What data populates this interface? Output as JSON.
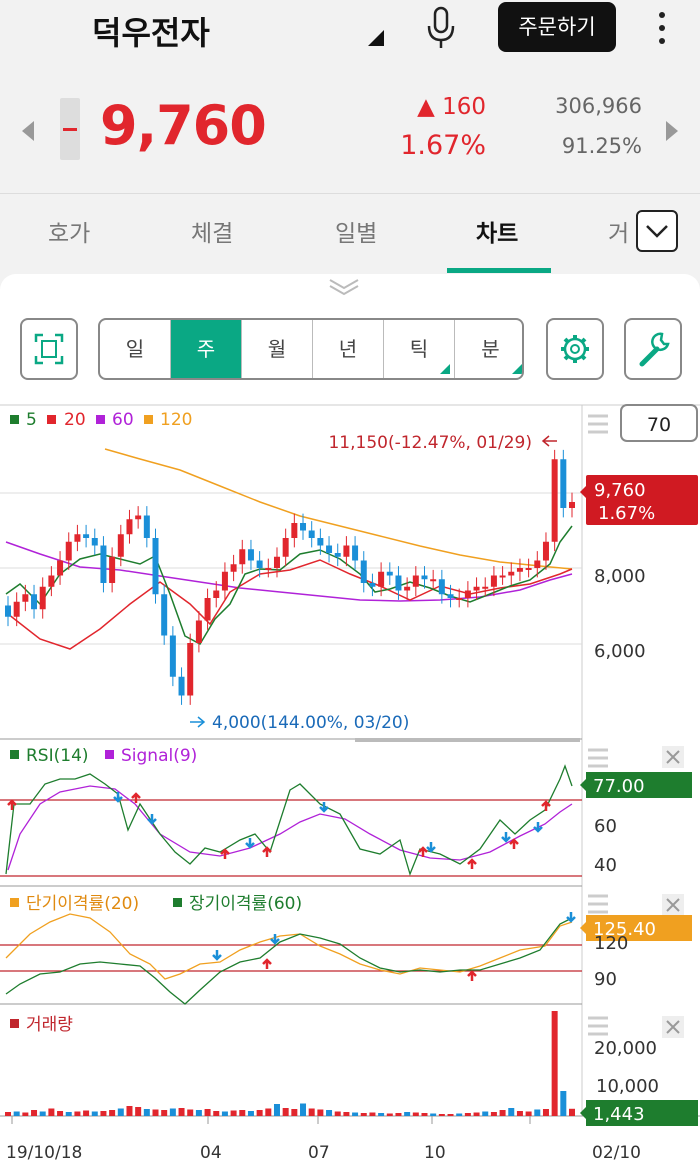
{
  "header": {
    "stock_name": "덕우전자",
    "order_button": "주문하기"
  },
  "quote": {
    "price": "9,760",
    "change_value": "▲ 160",
    "change_pct": "1.67%",
    "volume": "306,966",
    "volume_ratio": "91.25%"
  },
  "tabs": [
    {
      "label": "호가"
    },
    {
      "label": "체결"
    },
    {
      "label": "일별"
    },
    {
      "label": "차트"
    },
    {
      "label": "거"
    }
  ],
  "periods": [
    {
      "label": "일"
    },
    {
      "label": "주"
    },
    {
      "label": "월"
    },
    {
      "label": "년"
    },
    {
      "label": "틱"
    },
    {
      "label": "분"
    }
  ],
  "colors": {
    "accent": "#0aa884",
    "up": "#e1262d",
    "down": "#1a8fd8"
  },
  "chart": {
    "ma_legend": [
      "5",
      "20",
      "60",
      "120"
    ],
    "count_box": "70",
    "high_annotation": "11,150(-12.47%, 01/29)",
    "low_annotation": "4,000(144.00%, 03/20)",
    "price_label": "9,760",
    "price_label_pct": "1.67%",
    "price_ticks": [
      "8,000",
      "6,000"
    ],
    "rsi_legend_1": "RSI(14)",
    "rsi_legend_2": "Signal(9)",
    "rsi_value": "77.00",
    "rsi_ticks": [
      "60",
      "40"
    ],
    "disp_legend_1": "단기이격률(20)",
    "disp_legend_2": "장기이격률(60)",
    "disp_value": "125.40",
    "disp_ticks": [
      "120",
      "90"
    ],
    "vol_legend": "거래량",
    "vol_value": "1,443",
    "vol_ticks": [
      "20,000",
      "10,000"
    ],
    "x_ticks": [
      "19/10/18",
      "04",
      "07",
      "10",
      "02/10"
    ]
  },
  "chart_data": {
    "type": "candlestick",
    "panels": [
      "price",
      "rsi",
      "disparity",
      "volume"
    ],
    "current_price": 9760,
    "change_pct": 1.67,
    "high": {
      "value": 11150,
      "date": "01/29",
      "pct": -12.47
    },
    "low": {
      "value": 4000,
      "date": "03/20",
      "pct": 144.0
    },
    "moving_averages": [
      5,
      20,
      60,
      120
    ],
    "rsi": {
      "period": 14,
      "signal": 9,
      "current": 77.0
    },
    "disparity": {
      "short": 20,
      "long": 60,
      "current": 125.4
    },
    "volume_current": 1443,
    "x_ticks": [
      "19/10/18",
      "04",
      "07",
      "10",
      "02/10"
    ]
  }
}
